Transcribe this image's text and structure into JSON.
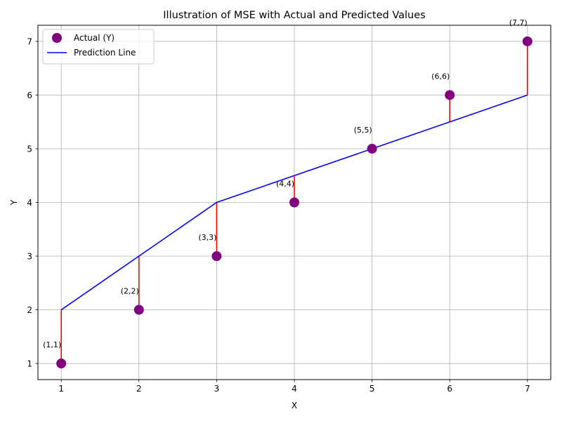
{
  "chart_data": {
    "type": "scatter",
    "title": "Illustration of MSE with Actual and Predicted Values",
    "xlabel": "X",
    "ylabel": "Y",
    "xlim": [
      0.7,
      7.3
    ],
    "ylim": [
      0.7,
      7.3
    ],
    "xticks": [
      1,
      2,
      3,
      4,
      5,
      6,
      7
    ],
    "yticks": [
      1,
      2,
      3,
      4,
      5,
      6,
      7
    ],
    "grid": true,
    "legend_position": "top-left",
    "x": [
      1,
      2,
      3,
      4,
      5,
      6,
      7
    ],
    "series": [
      {
        "name": "Actual (Y)",
        "kind": "scatter",
        "color": "#800080",
        "values": [
          1,
          2,
          3,
          4,
          5,
          6,
          7
        ]
      },
      {
        "name": "Prediction Line",
        "kind": "line",
        "color": "#0000ff",
        "values": [
          2,
          3,
          4,
          4.5,
          5,
          5.5,
          6
        ]
      }
    ],
    "residual_color": "#ff0000",
    "annotations": [
      "(1,1)",
      "(2,2)",
      "(3,3)",
      "(4,4)",
      "(5,5)",
      "(6,6)",
      "(7,7)"
    ]
  }
}
